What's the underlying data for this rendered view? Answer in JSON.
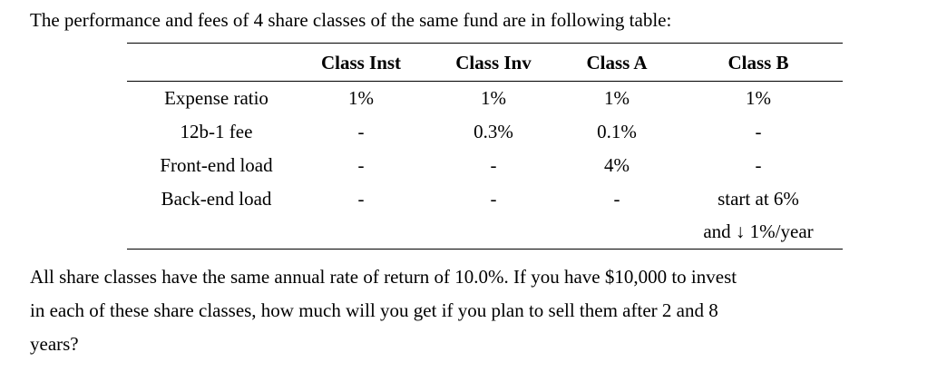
{
  "intro": "The performance and fees of 4 share classes of the same fund are in following table:",
  "table": {
    "headers": [
      "",
      "Class Inst",
      "Class Inv",
      "Class A",
      "Class B"
    ],
    "rows": [
      {
        "label": "Expense ratio",
        "values": [
          "1%",
          "1%",
          "1%",
          "1%"
        ]
      },
      {
        "label": "12b-1 fee",
        "values": [
          "-",
          "0.3%",
          "0.1%",
          "-"
        ]
      },
      {
        "label": "Front-end load",
        "values": [
          "-",
          "-",
          "4%",
          "-"
        ]
      },
      {
        "label": "Back-end load",
        "values": [
          "-",
          "-",
          "-",
          "start at 6%"
        ]
      },
      {
        "label": "",
        "values": [
          "",
          "",
          "",
          "and ↓ 1%/year"
        ]
      }
    ]
  },
  "question_lines": [
    "All share classes have the same annual rate of return of 10.0%. If you have $10,000 to invest",
    "in each of these share classes, how much will you get if you plan to sell them after 2 and 8",
    "years?"
  ]
}
